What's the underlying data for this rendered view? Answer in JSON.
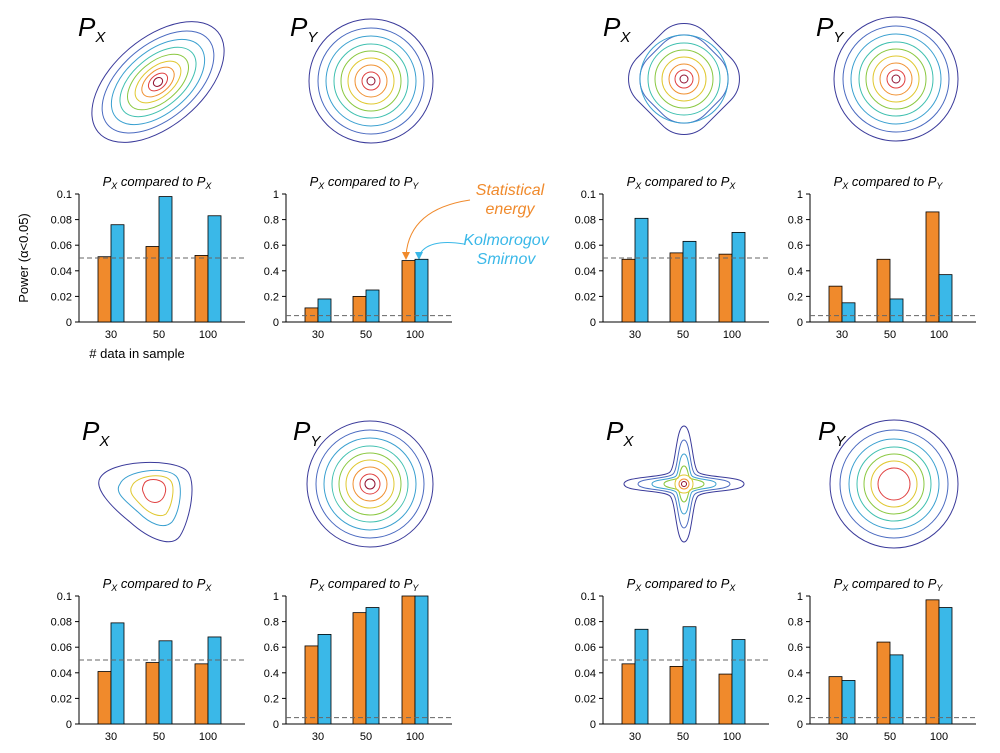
{
  "labels": {
    "dist_x_main": "P",
    "dist_x_sub": "X",
    "dist_y_main": "P",
    "dist_y_sub": "Y",
    "title_xx_a": "P",
    "title_xx_b": "X",
    "title_xx_c": " compared to ",
    "title_xx_d": "P",
    "title_xx_e": "X",
    "title_xy_a": "P",
    "title_xy_b": "X",
    "title_xy_c": " compared to ",
    "title_xy_d": "P",
    "title_xy_e": "Y",
    "ylabel": "Power (α<0.05)",
    "xlabel": "# data in sample",
    "legend_energy_1": "Statistical",
    "legend_energy_2": "energy",
    "legend_ks_1": "Kolmorogov",
    "legend_ks_2": "Smirnov"
  },
  "colors": {
    "energy": "#f08a2c",
    "ks": "#3ab8e8",
    "energy_label": "#f08a2c",
    "ks_label": "#3ab8e8"
  },
  "chart_data": [
    {
      "type": "bar",
      "categories": [
        "30",
        "50",
        "100"
      ],
      "ylim": [
        0,
        0.1
      ],
      "yticks": [
        "0",
        "0.02",
        "0.04",
        "0.06",
        "0.08",
        "0.1"
      ],
      "reference_line": 0.05,
      "series": [
        {
          "name": "Statistical energy",
          "values": [
            0.051,
            0.059,
            0.052
          ]
        },
        {
          "name": "Kolmorogov Smirnov",
          "values": [
            0.076,
            0.098,
            0.083
          ]
        }
      ]
    },
    {
      "type": "bar",
      "categories": [
        "30",
        "50",
        "100"
      ],
      "ylim": [
        0,
        1
      ],
      "yticks": [
        "0",
        "0.2",
        "0.4",
        "0.6",
        "0.8",
        "1"
      ],
      "reference_line": 0.05,
      "series": [
        {
          "name": "Statistical energy",
          "values": [
            0.11,
            0.2,
            0.48
          ]
        },
        {
          "name": "Kolmorogov Smirnov",
          "values": [
            0.18,
            0.25,
            0.49
          ]
        }
      ]
    },
    {
      "type": "bar",
      "categories": [
        "30",
        "50",
        "100"
      ],
      "ylim": [
        0,
        0.1
      ],
      "yticks": [
        "0",
        "0.02",
        "0.04",
        "0.06",
        "0.08",
        "0.1"
      ],
      "reference_line": 0.05,
      "series": [
        {
          "name": "Statistical energy",
          "values": [
            0.049,
            0.054,
            0.053
          ]
        },
        {
          "name": "Kolmorogov Smirnov",
          "values": [
            0.081,
            0.063,
            0.07
          ]
        }
      ]
    },
    {
      "type": "bar",
      "categories": [
        "30",
        "50",
        "100"
      ],
      "ylim": [
        0,
        1
      ],
      "yticks": [
        "0",
        "0.2",
        "0.4",
        "0.6",
        "0.8",
        "1"
      ],
      "reference_line": 0.05,
      "series": [
        {
          "name": "Statistical energy",
          "values": [
            0.28,
            0.49,
            0.86
          ]
        },
        {
          "name": "Kolmorogov Smirnov",
          "values": [
            0.15,
            0.18,
            0.37
          ]
        }
      ]
    },
    {
      "type": "bar",
      "categories": [
        "30",
        "50",
        "100"
      ],
      "ylim": [
        0,
        0.1
      ],
      "yticks": [
        "0",
        "0.02",
        "0.04",
        "0.06",
        "0.08",
        "0.1"
      ],
      "reference_line": 0.05,
      "series": [
        {
          "name": "Statistical energy",
          "values": [
            0.041,
            0.048,
            0.047
          ]
        },
        {
          "name": "Kolmorogov Smirnov",
          "values": [
            0.079,
            0.065,
            0.068
          ]
        }
      ]
    },
    {
      "type": "bar",
      "categories": [
        "30",
        "50",
        "100"
      ],
      "ylim": [
        0,
        1
      ],
      "yticks": [
        "0",
        "0.2",
        "0.4",
        "0.6",
        "0.8",
        "1"
      ],
      "reference_line": 0.05,
      "series": [
        {
          "name": "Statistical energy",
          "values": [
            0.61,
            0.87,
            1.0
          ]
        },
        {
          "name": "Kolmorogov Smirnov",
          "values": [
            0.7,
            0.91,
            1.0
          ]
        }
      ]
    },
    {
      "type": "bar",
      "categories": [
        "30",
        "50",
        "100"
      ],
      "ylim": [
        0,
        0.1
      ],
      "yticks": [
        "0",
        "0.02",
        "0.04",
        "0.06",
        "0.08",
        "0.1"
      ],
      "reference_line": 0.05,
      "series": [
        {
          "name": "Statistical energy",
          "values": [
            0.047,
            0.045,
            0.039
          ]
        },
        {
          "name": "Kolmorogov Smirnov",
          "values": [
            0.074,
            0.076,
            0.066
          ]
        }
      ]
    },
    {
      "type": "bar",
      "categories": [
        "30",
        "50",
        "100"
      ],
      "ylim": [
        0,
        1
      ],
      "yticks": [
        "0",
        "0.2",
        "0.4",
        "0.6",
        "0.8",
        "1"
      ],
      "reference_line": 0.05,
      "series": [
        {
          "name": "Statistical energy",
          "values": [
            0.37,
            0.64,
            0.97
          ]
        },
        {
          "name": "Kolmorogov Smirnov",
          "values": [
            0.34,
            0.54,
            0.91
          ]
        }
      ]
    }
  ]
}
